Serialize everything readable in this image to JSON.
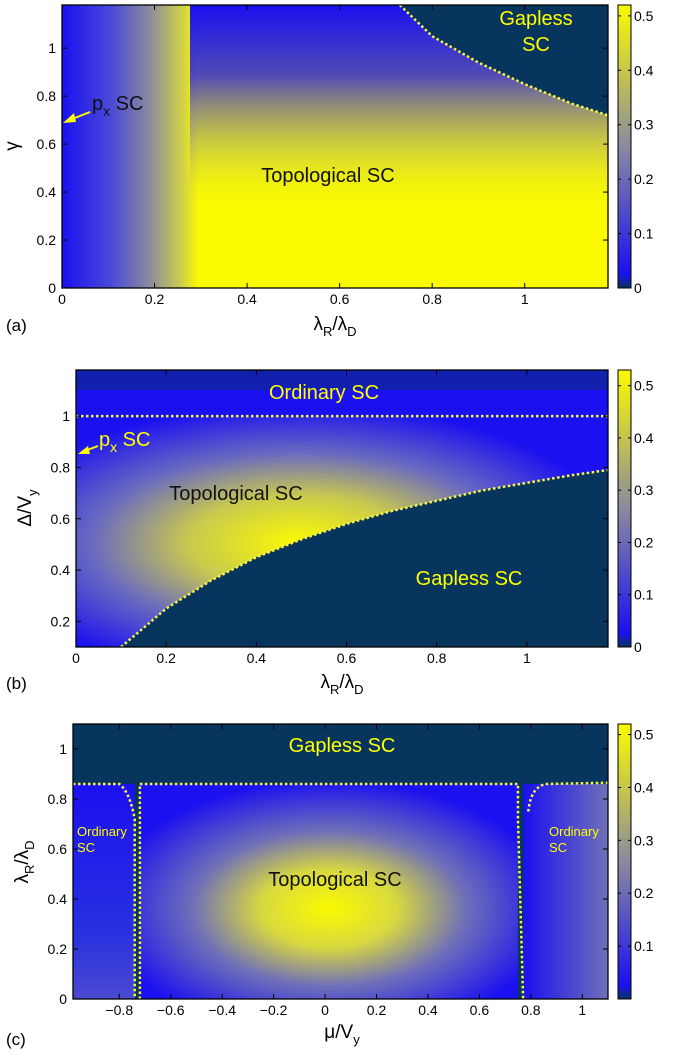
{
  "colors": {
    "low": "#08355d",
    "blue": "#1a10f0",
    "mid": "#8a8aa0",
    "high": "#fbfb00",
    "boundary": "#f7f740",
    "annotation_yellow": "#ffff00",
    "annotation_dark": "#000000"
  },
  "chart_data": [
    {
      "type": "heatmap",
      "panel": "(a)",
      "xlabel": "λR/λD",
      "xlabel_main": "λ",
      "xlabel_sub1": "R",
      "xlabel_mid": "/λ",
      "xlabel_sub2": "D",
      "ylabel": "γ",
      "xlim": [
        0,
        1.18
      ],
      "ylim": [
        0,
        1.18
      ],
      "xticks": [
        "0",
        "0.2",
        "0.4",
        "0.6",
        "0.8",
        "1"
      ],
      "yticks": [
        "0",
        "0.2",
        "0.4",
        "0.6",
        "0.8",
        "1"
      ],
      "colorbar_range": [
        0,
        0.52
      ],
      "colorbar_ticks": [
        "0",
        "0.1",
        "0.2",
        "0.3",
        "0.4",
        "0.5"
      ],
      "boundary": {
        "x": [
          0.73,
          0.8,
          0.9,
          1.0,
          1.1,
          1.18
        ],
        "y": [
          1.18,
          1.05,
          0.94,
          0.85,
          0.77,
          0.72
        ]
      },
      "annotations": [
        {
          "text": "Gapless",
          "x": 1.0,
          "y": 1.12,
          "color": "yellow"
        },
        {
          "text": "SC",
          "x": 1.0,
          "y": 1.0,
          "color": "yellow"
        },
        {
          "text": "Topological SC",
          "x": 0.58,
          "y": 0.5,
          "color": "dark"
        }
      ],
      "px_label": {
        "p": "p",
        "sub": "x",
        "rest": " SC"
      }
    },
    {
      "type": "heatmap",
      "panel": "(b)",
      "xlabel": "λR/λD",
      "xlabel_main": "λ",
      "xlabel_sub1": "R",
      "xlabel_mid": "/λ",
      "xlabel_sub2": "D",
      "ylabel": "Δ/Vy",
      "ylabel_main": "Δ/V",
      "ylabel_sub": "y",
      "xlim": [
        0,
        1.18
      ],
      "ylim": [
        0.1,
        1.18
      ],
      "xticks": [
        "0",
        "0.2",
        "0.4",
        "0.6",
        "0.8",
        "1"
      ],
      "yticks": [
        "0.2",
        "0.4",
        "0.6",
        "0.8",
        "1"
      ],
      "colorbar_range": [
        0,
        0.53
      ],
      "colorbar_ticks": [
        "0",
        "0.1",
        "0.2",
        "0.3",
        "0.4",
        "0.5"
      ],
      "boundary_top": {
        "x": [
          0,
          1.18
        ],
        "y": [
          1.0,
          1.0
        ]
      },
      "boundary_bottom": {
        "x": [
          0.1,
          0.2,
          0.3,
          0.4,
          0.5,
          0.6,
          0.7,
          0.8,
          0.9,
          1.0,
          1.1,
          1.18
        ],
        "y": [
          0.1,
          0.25,
          0.36,
          0.45,
          0.52,
          0.58,
          0.63,
          0.67,
          0.71,
          0.74,
          0.77,
          0.79
        ]
      },
      "annotations": [
        {
          "text": "Ordinary SC",
          "x": 0.5,
          "y": 1.1,
          "color": "yellow"
        },
        {
          "text": "Topological SC",
          "x": 0.35,
          "y": 0.7,
          "color": "dark"
        },
        {
          "text": "Gapless SC",
          "x": 0.82,
          "y": 0.38,
          "color": "yellow"
        }
      ],
      "px_label": {
        "p": "p",
        "sub": "x",
        "rest": " SC"
      }
    },
    {
      "type": "heatmap",
      "panel": "(c)",
      "xlabel": "μ/Vy",
      "xlabel_main": "μ/V",
      "xlabel_sub": "y",
      "ylabel": "λR/λD",
      "ylabel_main": "λ",
      "ylabel_sub1": "R",
      "ylabel_mid": "/λ",
      "ylabel_sub2": "D",
      "xlim": [
        -0.98,
        1.1
      ],
      "ylim": [
        0,
        1.1
      ],
      "xticks": [
        "−0.8",
        "−0.6",
        "−0.4",
        "−0.2",
        "0",
        "0.2",
        "0.4",
        "0.6",
        "0.8",
        "1"
      ],
      "xtick_values": [
        -0.8,
        -0.6,
        -0.4,
        -0.2,
        0,
        0.2,
        0.4,
        0.6,
        0.8,
        1
      ],
      "yticks": [
        "0",
        "0.2",
        "0.4",
        "0.6",
        "0.8",
        "1"
      ],
      "colorbar_range": [
        0,
        0.52
      ],
      "colorbar_ticks": [
        "0.1",
        "0.2",
        "0.3",
        "0.4",
        "0.5"
      ],
      "annotations": [
        {
          "text": "Gapless SC",
          "x": 0.0,
          "y": 1.0,
          "color": "yellow"
        },
        {
          "text": "Topological SC",
          "x": 0.0,
          "y": 0.43,
          "color": "dark"
        }
      ],
      "small_labels": [
        {
          "line1": "Ordinary",
          "line2": "SC",
          "x": -0.97
        },
        {
          "line1": "Ordinary",
          "line2": "SC",
          "x": 0.88
        }
      ]
    }
  ]
}
